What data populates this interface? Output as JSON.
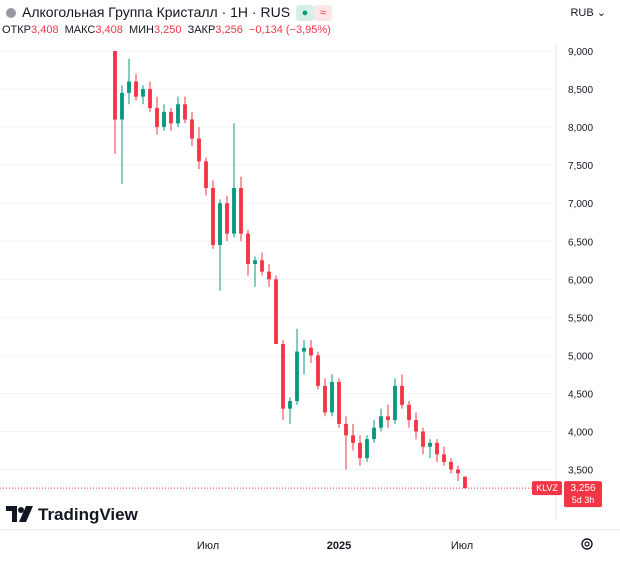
{
  "header": {
    "title": "Алкогольная Группа Кристалл · 1H · RUS",
    "currency": "RUB",
    "badge_green_icon": "dot-icon",
    "badge_red_icon": "approx-icon",
    "badge_red_text": "≈",
    "ohlc": {
      "open_label": "ОТКР",
      "open": "3,408",
      "high_label": "МАКС",
      "high": "3,408",
      "low_label": "МИН",
      "low": "3,250",
      "close_label": "ЗАКР",
      "close": "3,256",
      "change": "−0,134 (−3,95%)"
    }
  },
  "price_tag": {
    "ticker": "KLVZ",
    "price": "3,256",
    "countdown": "5d 3h"
  },
  "brand": {
    "name": "TradingView",
    "icon": "tradingview-logo-icon"
  },
  "colors": {
    "up": "#089981",
    "down": "#f23645",
    "text": "#131722",
    "grid": "#f0f3fa"
  },
  "chart_data": {
    "type": "candlestick",
    "y_ticks": [
      "9,000",
      "8,500",
      "8,000",
      "7,500",
      "7,000",
      "6,500",
      "6,000",
      "5,500",
      "5,000",
      "4,500",
      "4,000",
      "3,500"
    ],
    "ylim": [
      3.2,
      9.1
    ],
    "x_ticks": [
      "Июл",
      "2025",
      "Июл"
    ],
    "last_price": 3.256,
    "candles": [
      [
        9.0,
        9.0,
        7.65,
        8.1
      ],
      [
        8.1,
        8.55,
        7.25,
        8.45
      ],
      [
        8.45,
        8.9,
        8.3,
        8.6
      ],
      [
        8.6,
        8.7,
        8.35,
        8.4
      ],
      [
        8.4,
        8.55,
        8.3,
        8.5
      ],
      [
        8.5,
        8.6,
        8.2,
        8.25
      ],
      [
        8.25,
        8.4,
        7.9,
        8.0
      ],
      [
        8.0,
        8.3,
        7.95,
        8.2
      ],
      [
        8.2,
        8.25,
        7.95,
        8.05
      ],
      [
        8.05,
        8.4,
        8.0,
        8.3
      ],
      [
        8.3,
        8.4,
        8.05,
        8.1
      ],
      [
        8.1,
        8.2,
        7.75,
        7.85
      ],
      [
        7.85,
        8.0,
        7.45,
        7.55
      ],
      [
        7.55,
        7.6,
        7.1,
        7.2
      ],
      [
        7.2,
        7.3,
        6.4,
        6.45
      ],
      [
        6.45,
        7.05,
        5.85,
        7.0
      ],
      [
        7.0,
        7.1,
        6.5,
        6.6
      ],
      [
        6.6,
        8.05,
        6.55,
        7.2
      ],
      [
        7.2,
        7.35,
        6.5,
        6.6
      ],
      [
        6.6,
        6.65,
        6.05,
        6.2
      ],
      [
        6.2,
        6.3,
        5.9,
        6.25
      ],
      [
        6.25,
        6.35,
        6.05,
        6.1
      ],
      [
        6.1,
        6.2,
        5.9,
        6.0
      ],
      [
        6.0,
        6.05,
        5.15,
        5.15
      ],
      [
        5.15,
        5.2,
        4.15,
        4.3
      ],
      [
        4.3,
        4.45,
        4.1,
        4.4
      ],
      [
        4.4,
        5.35,
        4.35,
        5.05
      ],
      [
        5.05,
        5.2,
        4.75,
        5.1
      ],
      [
        5.1,
        5.2,
        4.9,
        5.0
      ],
      [
        5.0,
        5.05,
        4.55,
        4.6
      ],
      [
        4.6,
        4.7,
        4.2,
        4.25
      ],
      [
        4.25,
        4.75,
        4.2,
        4.65
      ],
      [
        4.65,
        4.7,
        4.05,
        4.1
      ],
      [
        4.1,
        4.2,
        3.5,
        3.95
      ],
      [
        3.95,
        4.1,
        3.75,
        3.85
      ],
      [
        3.85,
        3.95,
        3.55,
        3.65
      ],
      [
        3.65,
        3.95,
        3.6,
        3.9
      ],
      [
        3.9,
        4.15,
        3.85,
        4.05
      ],
      [
        4.05,
        4.3,
        4.0,
        4.2
      ],
      [
        4.2,
        4.35,
        4.05,
        4.15
      ],
      [
        4.15,
        4.7,
        4.1,
        4.6
      ],
      [
        4.6,
        4.75,
        4.3,
        4.35
      ],
      [
        4.35,
        4.4,
        4.05,
        4.15
      ],
      [
        4.15,
        4.25,
        3.9,
        4.0
      ],
      [
        4.0,
        4.05,
        3.7,
        3.8
      ],
      [
        3.8,
        3.9,
        3.65,
        3.85
      ],
      [
        3.85,
        3.9,
        3.6,
        3.7
      ],
      [
        3.7,
        3.8,
        3.55,
        3.6
      ],
      [
        3.6,
        3.65,
        3.45,
        3.5
      ],
      [
        3.5,
        3.55,
        3.35,
        3.45
      ],
      [
        3.408,
        3.408,
        3.25,
        3.256
      ]
    ]
  }
}
